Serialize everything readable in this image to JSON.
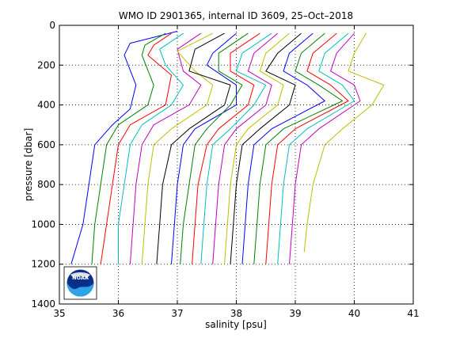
{
  "chart_data": {
    "type": "line",
    "title": "WMO ID 2901365, internal ID 3609, 25–Oct–2018",
    "xlabel": "salinity [psu]",
    "ylabel": "pressure [dbar]",
    "xlim": [
      35,
      41
    ],
    "ylim": [
      0,
      1400
    ],
    "y_reversed": true,
    "grid": true,
    "x_ticks": [
      "35",
      "36",
      "37",
      "38",
      "39",
      "40",
      "41"
    ],
    "y_ticks": [
      "0",
      "200",
      "400",
      "600",
      "800",
      "1000",
      "1200",
      "1400"
    ],
    "logo": "NOAA",
    "series": [
      {
        "color": "#0000ff",
        "points": [
          [
            37.0,
            30
          ],
          [
            36.6,
            60
          ],
          [
            36.2,
            90
          ],
          [
            36.1,
            150
          ],
          [
            36.3,
            300
          ],
          [
            36.2,
            420
          ],
          [
            35.9,
            500
          ],
          [
            35.6,
            600
          ],
          [
            35.5,
            800
          ],
          [
            35.4,
            1000
          ],
          [
            35.2,
            1200
          ]
        ]
      },
      {
        "color": "#008000",
        "points": [
          [
            36.8,
            40
          ],
          [
            36.45,
            100
          ],
          [
            36.4,
            150
          ],
          [
            36.6,
            300
          ],
          [
            36.5,
            400
          ],
          [
            36.0,
            500
          ],
          [
            35.8,
            600
          ],
          [
            35.7,
            800
          ],
          [
            35.6,
            1000
          ],
          [
            35.55,
            1200
          ]
        ]
      },
      {
        "color": "#ff0000",
        "points": [
          [
            36.9,
            40
          ],
          [
            36.6,
            100
          ],
          [
            36.5,
            150
          ],
          [
            36.9,
            250
          ],
          [
            36.8,
            400
          ],
          [
            36.2,
            500
          ],
          [
            36.0,
            600
          ],
          [
            35.9,
            800
          ],
          [
            35.8,
            1000
          ],
          [
            35.7,
            1200
          ]
        ]
      },
      {
        "color": "#00bfbf",
        "points": [
          [
            37.1,
            40
          ],
          [
            36.7,
            120
          ],
          [
            36.8,
            200
          ],
          [
            37.1,
            300
          ],
          [
            36.9,
            400
          ],
          [
            36.4,
            500
          ],
          [
            36.2,
            600
          ],
          [
            36.1,
            800
          ],
          [
            36.0,
            1000
          ],
          [
            36.0,
            1200
          ]
        ]
      },
      {
        "color": "#bf00bf",
        "points": [
          [
            37.4,
            40
          ],
          [
            37.0,
            120
          ],
          [
            37.1,
            230
          ],
          [
            37.4,
            300
          ],
          [
            37.2,
            400
          ],
          [
            36.6,
            500
          ],
          [
            36.4,
            600
          ],
          [
            36.3,
            800
          ],
          [
            36.25,
            1000
          ],
          [
            36.2,
            1200
          ]
        ]
      },
      {
        "color": "#bfbf00",
        "points": [
          [
            37.6,
            40
          ],
          [
            37.0,
            130
          ],
          [
            37.3,
            230
          ],
          [
            37.6,
            300
          ],
          [
            37.5,
            400
          ],
          [
            36.9,
            520
          ],
          [
            36.6,
            600
          ],
          [
            36.5,
            800
          ],
          [
            36.45,
            1000
          ],
          [
            36.4,
            1200
          ]
        ]
      },
      {
        "color": "#000000",
        "points": [
          [
            37.8,
            40
          ],
          [
            37.3,
            120
          ],
          [
            37.2,
            230
          ],
          [
            37.9,
            300
          ],
          [
            37.8,
            400
          ],
          [
            37.2,
            520
          ],
          [
            36.9,
            600
          ],
          [
            36.75,
            800
          ],
          [
            36.7,
            1000
          ],
          [
            36.65,
            1200
          ]
        ]
      },
      {
        "color": "#0000ff",
        "points": [
          [
            38.0,
            40
          ],
          [
            37.6,
            140
          ],
          [
            37.5,
            200
          ],
          [
            38.0,
            300
          ],
          [
            38.0,
            400
          ],
          [
            37.3,
            520
          ],
          [
            37.1,
            600
          ],
          [
            37.0,
            800
          ],
          [
            36.95,
            1000
          ],
          [
            36.9,
            1200
          ]
        ]
      },
      {
        "color": "#008000",
        "points": [
          [
            38.2,
            40
          ],
          [
            37.7,
            140
          ],
          [
            37.7,
            230
          ],
          [
            38.1,
            300
          ],
          [
            37.9,
            400
          ],
          [
            37.5,
            520
          ],
          [
            37.3,
            600
          ],
          [
            37.2,
            800
          ],
          [
            37.1,
            1000
          ],
          [
            37.05,
            1200
          ]
        ]
      },
      {
        "color": "#ff0000",
        "points": [
          [
            38.4,
            40
          ],
          [
            37.9,
            140
          ],
          [
            37.9,
            230
          ],
          [
            38.3,
            300
          ],
          [
            38.2,
            400
          ],
          [
            37.7,
            520
          ],
          [
            37.5,
            600
          ],
          [
            37.35,
            800
          ],
          [
            37.3,
            1000
          ],
          [
            37.25,
            1200
          ]
        ]
      },
      {
        "color": "#00bfbf",
        "points": [
          [
            38.6,
            40
          ],
          [
            38.1,
            140
          ],
          [
            38.0,
            230
          ],
          [
            38.5,
            300
          ],
          [
            38.3,
            400
          ],
          [
            37.9,
            520
          ],
          [
            37.6,
            600
          ],
          [
            37.5,
            800
          ],
          [
            37.45,
            1000
          ],
          [
            37.4,
            1200
          ]
        ]
      },
      {
        "color": "#bf00bf",
        "points": [
          [
            38.7,
            40
          ],
          [
            38.3,
            140
          ],
          [
            38.2,
            230
          ],
          [
            38.6,
            300
          ],
          [
            38.5,
            400
          ],
          [
            38.0,
            520
          ],
          [
            37.8,
            600
          ],
          [
            37.7,
            800
          ],
          [
            37.65,
            1000
          ],
          [
            37.6,
            1200
          ]
        ]
      },
      {
        "color": "#bfbf00",
        "points": [
          [
            38.9,
            40
          ],
          [
            38.5,
            140
          ],
          [
            38.4,
            230
          ],
          [
            38.8,
            300
          ],
          [
            38.7,
            400
          ],
          [
            38.2,
            520
          ],
          [
            38.0,
            600
          ],
          [
            37.9,
            800
          ],
          [
            37.85,
            1000
          ],
          [
            37.8,
            1200
          ]
        ]
      },
      {
        "color": "#000000",
        "points": [
          [
            39.1,
            40
          ],
          [
            38.7,
            140
          ],
          [
            38.5,
            230
          ],
          [
            39.0,
            300
          ],
          [
            38.9,
            400
          ],
          [
            38.4,
            520
          ],
          [
            38.1,
            600
          ],
          [
            38.0,
            800
          ],
          [
            37.95,
            1000
          ],
          [
            37.9,
            1200
          ]
        ]
      },
      {
        "color": "#0000ff",
        "points": [
          [
            39.3,
            40
          ],
          [
            38.9,
            140
          ],
          [
            38.8,
            230
          ],
          [
            39.2,
            300
          ],
          [
            39.5,
            380
          ],
          [
            38.6,
            520
          ],
          [
            38.3,
            600
          ],
          [
            38.2,
            800
          ],
          [
            38.15,
            1000
          ],
          [
            38.1,
            1200
          ]
        ]
      },
      {
        "color": "#008000",
        "points": [
          [
            39.5,
            40
          ],
          [
            39.1,
            140
          ],
          [
            39.0,
            230
          ],
          [
            39.4,
            300
          ],
          [
            39.8,
            380
          ],
          [
            38.8,
            520
          ],
          [
            38.5,
            600
          ],
          [
            38.4,
            800
          ],
          [
            38.35,
            1000
          ],
          [
            38.3,
            1200
          ]
        ]
      },
      {
        "color": "#ff0000",
        "points": [
          [
            39.7,
            40
          ],
          [
            39.3,
            140
          ],
          [
            39.2,
            230
          ],
          [
            39.6,
            300
          ],
          [
            39.9,
            380
          ],
          [
            39.0,
            520
          ],
          [
            38.7,
            600
          ],
          [
            38.6,
            800
          ],
          [
            38.55,
            1000
          ],
          [
            38.5,
            1200
          ]
        ]
      },
      {
        "color": "#00bfbf",
        "points": [
          [
            39.9,
            40
          ],
          [
            39.5,
            140
          ],
          [
            39.4,
            230
          ],
          [
            39.8,
            300
          ],
          [
            40.0,
            380
          ],
          [
            39.2,
            520
          ],
          [
            38.9,
            600
          ],
          [
            38.8,
            800
          ],
          [
            38.75,
            1000
          ],
          [
            38.7,
            1200
          ]
        ]
      },
      {
        "color": "#bf00bf",
        "points": [
          [
            40.0,
            40
          ],
          [
            39.7,
            140
          ],
          [
            39.6,
            230
          ],
          [
            40.0,
            300
          ],
          [
            40.1,
            380
          ],
          [
            39.4,
            520
          ],
          [
            39.1,
            600
          ],
          [
            39.0,
            800
          ],
          [
            38.95,
            1000
          ],
          [
            38.9,
            1200
          ]
        ]
      },
      {
        "color": "#bfbf00",
        "points": [
          [
            40.2,
            40
          ],
          [
            40.0,
            140
          ],
          [
            39.9,
            230
          ],
          [
            40.5,
            300
          ],
          [
            40.3,
            400
          ],
          [
            39.8,
            520
          ],
          [
            39.5,
            600
          ],
          [
            39.3,
            800
          ],
          [
            39.2,
            1000
          ],
          [
            39.15,
            1140
          ]
        ]
      }
    ]
  }
}
